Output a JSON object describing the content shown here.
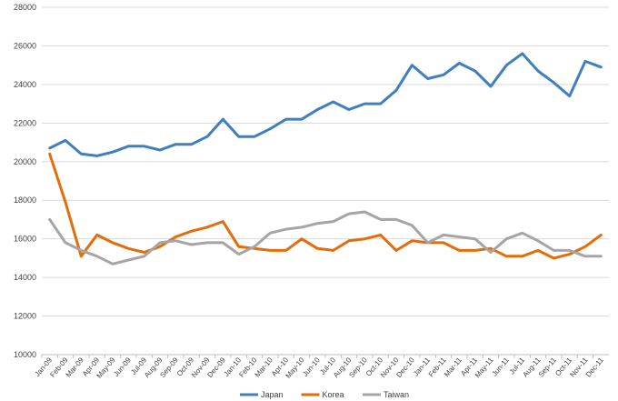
{
  "chart_data": {
    "type": "line",
    "title": "",
    "xlabel": "",
    "ylabel": "",
    "ylim": [
      10000,
      28000
    ],
    "yticks": [
      10000,
      12000,
      14000,
      16000,
      18000,
      20000,
      22000,
      24000,
      26000,
      28000
    ],
    "grid": "horizontal",
    "legend_position": "bottom",
    "categories": [
      "Jan-09",
      "Feb-09",
      "Mar-09",
      "Apr-09",
      "May-09",
      "Jun-09",
      "Jul-09",
      "Aug-09",
      "Sep-09",
      "Oct-09",
      "Nov-09",
      "Dec-09",
      "Jan-10",
      "Feb-10",
      "Mar-10",
      "Apr-10",
      "May-10",
      "Jun-10",
      "Jul-10",
      "Aug-10",
      "Sep-10",
      "Oct-10",
      "Nov-10",
      "Dec-10",
      "Jan-11",
      "Feb-11",
      "Mar-11",
      "Apr-11",
      "May-11",
      "Jun-11",
      "Jul-11",
      "Aug-11",
      "Sep-11",
      "Oct-11",
      "Nov-11",
      "Dec-11"
    ],
    "series": [
      {
        "name": "Japan",
        "color": "#3f7fbf",
        "values": [
          20700,
          21100,
          20400,
          20300,
          20500,
          20800,
          20800,
          20600,
          20900,
          20900,
          21300,
          22200,
          21300,
          21300,
          21700,
          22200,
          22200,
          22700,
          23100,
          22700,
          23000,
          23000,
          23700,
          25000,
          24300,
          24500,
          25100,
          24700,
          23900,
          25000,
          25600,
          24700,
          24100,
          23400,
          25200,
          24900
        ]
      },
      {
        "name": "Korea",
        "color": "#e46c0a",
        "values": [
          20400,
          17900,
          15100,
          16200,
          15800,
          15500,
          15300,
          15600,
          16100,
          16400,
          16600,
          16900,
          15600,
          15500,
          15400,
          15400,
          16000,
          15500,
          15400,
          15900,
          16000,
          16200,
          15400,
          15900,
          15800,
          15800,
          15400,
          15400,
          15500,
          15100,
          15100,
          15400,
          15000,
          15200,
          15600,
          16200
        ]
      },
      {
        "name": "Taiwan",
        "color": "#a5a5a5",
        "values": [
          17000,
          15800,
          15400,
          15100,
          14700,
          14900,
          15100,
          15800,
          15900,
          15700,
          15800,
          15800,
          15200,
          15600,
          16300,
          16500,
          16600,
          16800,
          16900,
          17300,
          17400,
          17000,
          17000,
          16700,
          15800,
          16200,
          16100,
          16000,
          15300,
          16000,
          16300,
          15900,
          15400,
          15400,
          15100,
          15100
        ]
      }
    ]
  }
}
